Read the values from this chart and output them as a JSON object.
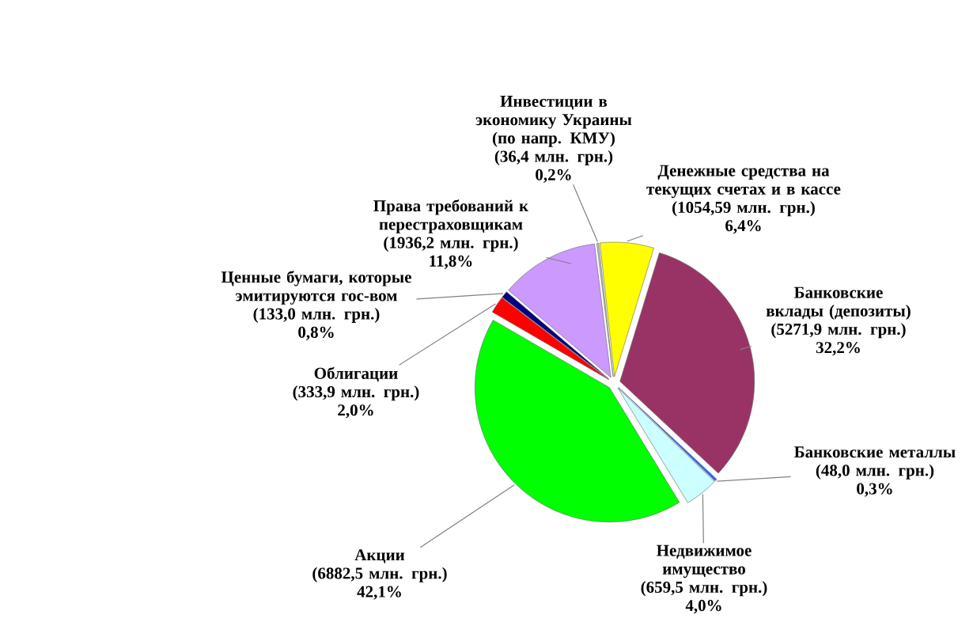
{
  "chart_data": {
    "type": "pie",
    "categories": [
      "Инвестиции в экономику Украины (по напр. КМУ)",
      "Денежные средства на текущих счетах и в кассе",
      "Банковские вклады (депозиты)",
      "Банковские металлы",
      "Недвижимое имущество",
      "Акции",
      "Облигации",
      "Ценные бумаги, которые эмитируются гос-вом",
      "Права требований к перестраховщикам"
    ],
    "values": [
      36.4,
      1054.59,
      5271.9,
      48.0,
      659.5,
      6882.5,
      333.9,
      133.0,
      1936.2
    ],
    "colors": [
      "#c0c0c0",
      "#ffff00",
      "#993366",
      "#3366ff",
      "#ccffff",
      "#00ff00",
      "#ff0000",
      "#000080",
      "#cc99ff"
    ],
    "value_labels": [
      "(36,4 млн. грн.)",
      "(1054,59 млн. грн.)",
      "(5271,9 млн. грн.)",
      "(48,0 млн. грн.)",
      "(659,5 млн. грн.)",
      "(6882,5 млн. грн.)",
      "(333,9 млн. грн.)",
      "(133,0 млн. грн.)",
      "(1936,2 млн. грн.)"
    ],
    "annotations": [
      "0,2%",
      "6,4%",
      "32,2%",
      "0,3%",
      "4,0%",
      "42,1%",
      "2,0%",
      "0,8%",
      "11,8%"
    ]
  }
}
